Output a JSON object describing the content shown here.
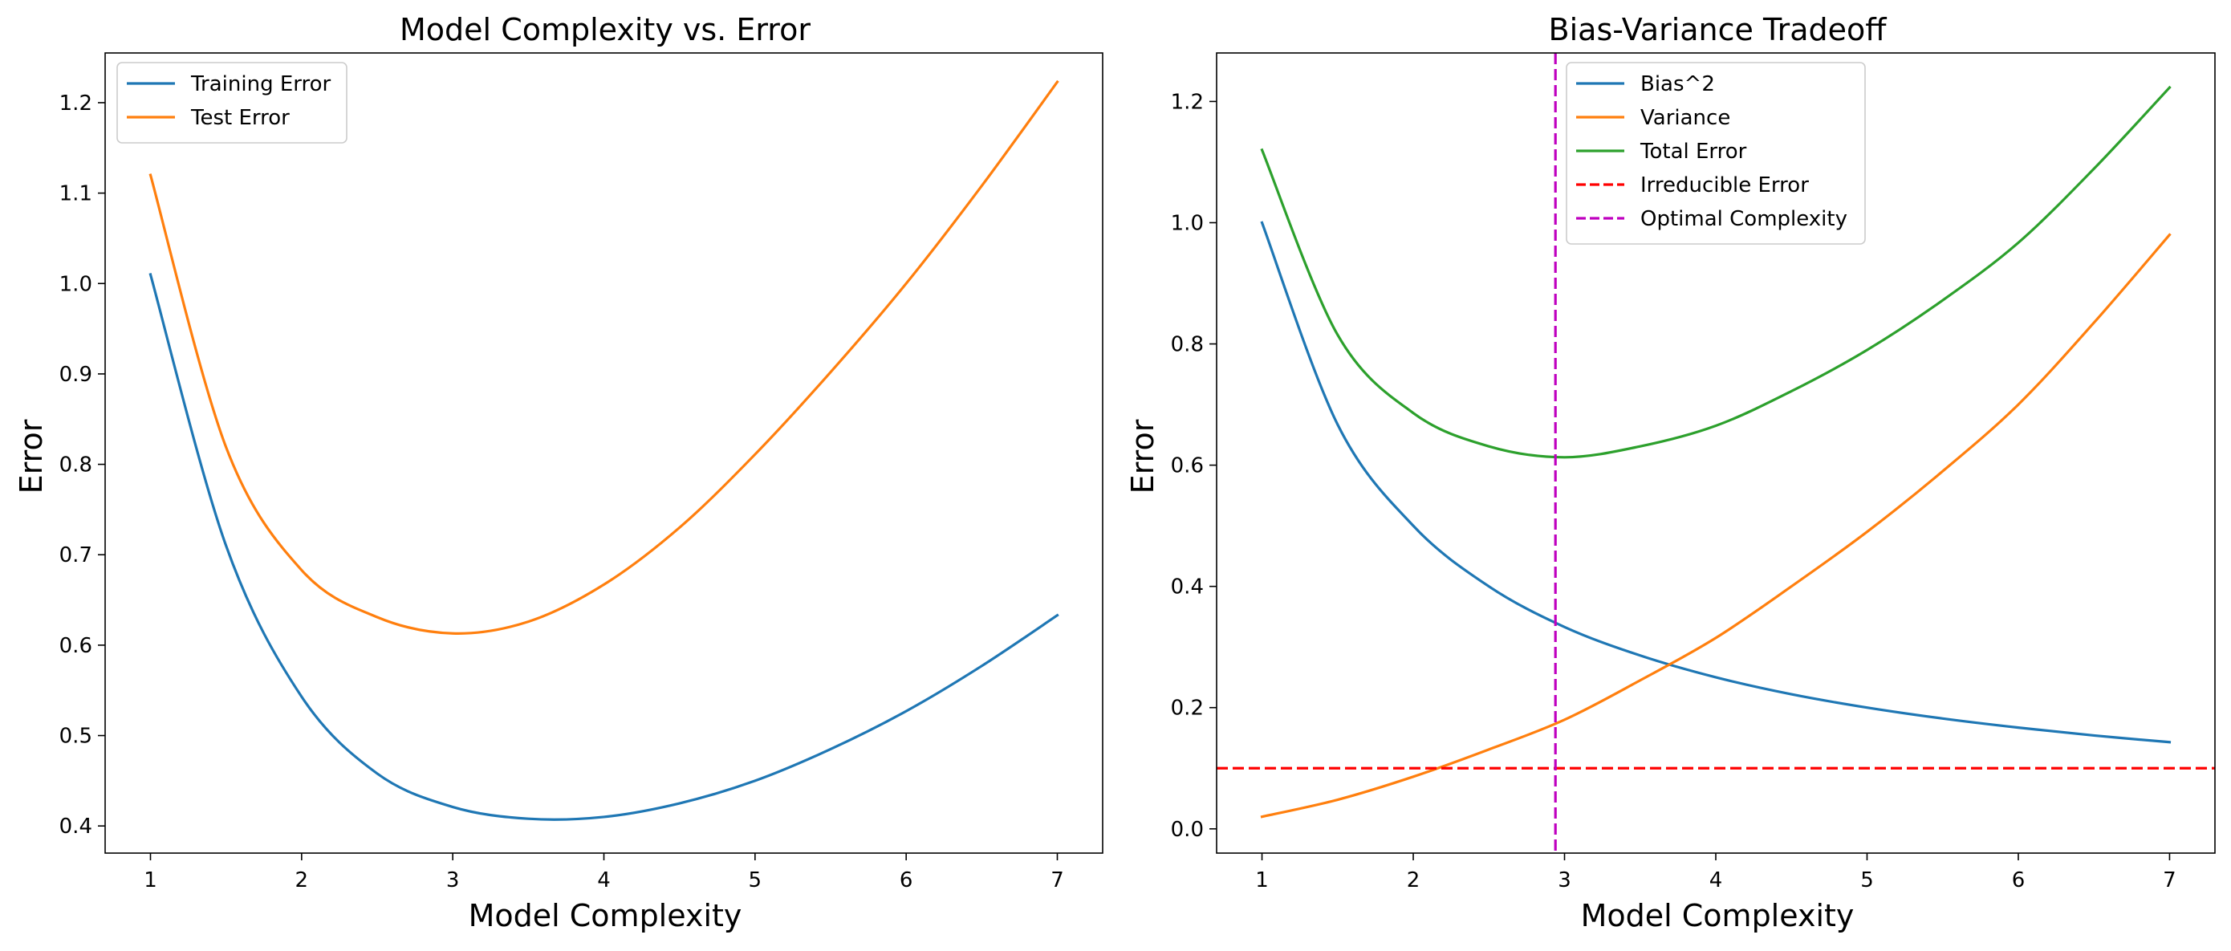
{
  "chart_data": [
    {
      "type": "line",
      "title": "Model Complexity vs. Error",
      "xlabel": "Model Complexity",
      "ylabel": "Error",
      "xlim": [
        0.7,
        7.3
      ],
      "ylim": [
        0.37,
        1.255
      ],
      "xticks": [
        1,
        2,
        3,
        4,
        5,
        6,
        7
      ],
      "yticks": [
        0.4,
        0.5,
        0.6,
        0.7,
        0.8,
        0.9,
        1.0,
        1.1,
        1.2
      ],
      "ytick_labels": [
        "0.4",
        "0.5",
        "0.6",
        "0.7",
        "0.8",
        "0.9",
        "1.0",
        "1.1",
        "1.2"
      ],
      "legend_position": "upper-left",
      "grid": false,
      "x": [
        1,
        1.5,
        2,
        2.5,
        3,
        3.5,
        4,
        4.5,
        5,
        5.5,
        6,
        6.5,
        7
      ],
      "series": [
        {
          "name": "Training Error",
          "color": "#1f77b4",
          "style": "solid",
          "values": [
            1.01,
            0.71,
            0.543,
            0.458,
            0.421,
            0.408,
            0.41,
            0.425,
            0.45,
            0.485,
            0.527,
            0.577,
            0.633
          ]
        },
        {
          "name": "Test Error",
          "color": "#ff7f0e",
          "style": "solid",
          "values": [
            1.12,
            0.819,
            0.683,
            0.631,
            0.613,
            0.626,
            0.667,
            0.73,
            0.811,
            0.902,
            1.0,
            1.108,
            1.223
          ]
        }
      ]
    },
    {
      "type": "line",
      "title": "Bias-Variance Tradeoff",
      "xlabel": "Model Complexity",
      "ylabel": "Error",
      "xlim": [
        0.7,
        7.3
      ],
      "ylim": [
        -0.04,
        1.28
      ],
      "xticks": [
        1,
        2,
        3,
        4,
        5,
        6,
        7
      ],
      "yticks": [
        0.0,
        0.2,
        0.4,
        0.6,
        0.8,
        1.0,
        1.2
      ],
      "ytick_labels": [
        "0.0",
        "0.2",
        "0.4",
        "0.6",
        "0.8",
        "1.0",
        "1.2"
      ],
      "legend_position": "upper-center",
      "grid": false,
      "x": [
        1,
        1.5,
        2,
        2.5,
        3,
        3.5,
        4,
        4.5,
        5,
        5.5,
        6,
        6.5,
        7
      ],
      "series": [
        {
          "name": "Bias^2",
          "color": "#1f77b4",
          "style": "solid",
          "values": [
            1.0,
            0.667,
            0.5,
            0.4,
            0.333,
            0.286,
            0.25,
            0.222,
            0.2,
            0.182,
            0.167,
            0.154,
            0.143
          ]
        },
        {
          "name": "Variance",
          "color": "#ff7f0e",
          "style": "solid",
          "values": [
            0.02,
            0.048,
            0.086,
            0.131,
            0.18,
            0.245,
            0.315,
            0.4,
            0.49,
            0.59,
            0.7,
            0.835,
            0.98
          ]
        },
        {
          "name": "Total Error",
          "color": "#2ca02c",
          "style": "solid",
          "values": [
            1.12,
            0.815,
            0.686,
            0.631,
            0.613,
            0.631,
            0.665,
            0.722,
            0.79,
            0.872,
            0.967,
            1.089,
            1.223
          ]
        }
      ],
      "reference_lines": [
        {
          "name": "Irreducible Error",
          "orientation": "horizontal",
          "value": 0.1,
          "color": "#ff0000",
          "style": "dashed"
        },
        {
          "name": "Optimal Complexity",
          "orientation": "vertical",
          "value": 2.94,
          "color": "#bf00bf",
          "style": "dashed"
        }
      ]
    }
  ]
}
